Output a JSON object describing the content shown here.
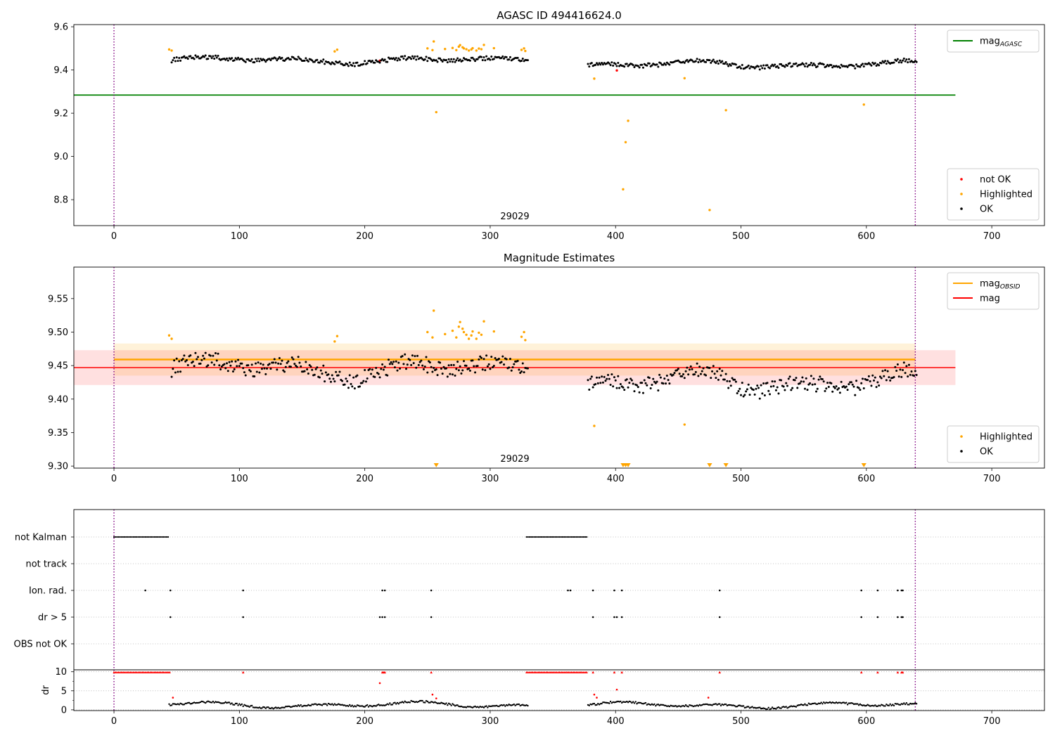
{
  "chart_data": [
    {
      "type": "scatter",
      "title": "AGASC ID 494416624.0",
      "annotation": "29029",
      "xlim": [
        -32,
        742
      ],
      "ylim": [
        8.68,
        9.61
      ],
      "xticks": [
        0,
        100,
        200,
        300,
        400,
        500,
        600,
        700
      ],
      "yticks": [
        8.8,
        9.0,
        9.2,
        9.4,
        9.6
      ],
      "grid": false,
      "vlines": [
        0,
        639
      ],
      "hlines": [
        {
          "name": "mag_AGASC",
          "y": 9.284,
          "x": [
            -32,
            671
          ],
          "color": "#008000"
        }
      ],
      "legend_top": {
        "position": "top-right",
        "entries": [
          {
            "label": "mag",
            "sub": "AGASC",
            "kind": "line",
            "color": "#008000"
          }
        ]
      },
      "legend_bottom": {
        "position": "bottom-right",
        "entries": [
          {
            "label": "not OK",
            "kind": "dot",
            "color": "#ff0000"
          },
          {
            "label": "Highlighted",
            "kind": "dot",
            "color": "#ffa500"
          },
          {
            "label": "OK",
            "kind": "dot",
            "color": "#000000"
          }
        ]
      },
      "series": [
        {
          "name": "not OK",
          "color": "#ff0000",
          "points": [
            [
              212,
              9.443
            ],
            [
              401,
              9.398
            ]
          ]
        },
        {
          "name": "Highlighted",
          "color": "#ffa500",
          "points": [
            [
              44,
              9.495
            ],
            [
              46,
              9.49
            ],
            [
              176,
              9.486
            ],
            [
              178,
              9.494
            ],
            [
              250,
              9.5
            ],
            [
              254,
              9.492
            ],
            [
              255,
              9.532
            ],
            [
              257,
              9.205
            ],
            [
              264,
              9.497
            ],
            [
              270,
              9.502
            ],
            [
              273,
              9.492
            ],
            [
              275,
              9.508
            ],
            [
              276,
              9.515
            ],
            [
              278,
              9.505
            ],
            [
              279,
              9.5
            ],
            [
              281,
              9.496
            ],
            [
              283,
              9.49
            ],
            [
              285,
              9.495
            ],
            [
              286,
              9.501
            ],
            [
              289,
              9.49
            ],
            [
              291,
              9.499
            ],
            [
              293,
              9.496
            ],
            [
              295,
              9.516
            ],
            [
              303,
              9.501
            ],
            [
              325,
              9.493
            ],
            [
              327,
              9.5
            ],
            [
              328,
              9.488
            ],
            [
              383,
              9.36
            ],
            [
              406,
              8.848
            ],
            [
              408,
              9.066
            ],
            [
              410,
              9.165
            ],
            [
              455,
              9.362
            ],
            [
              475,
              8.752
            ],
            [
              488,
              9.214
            ],
            [
              598,
              9.24
            ]
          ]
        },
        {
          "name": "OK",
          "color": "#000000",
          "segments": [
            {
              "x_start": 46,
              "x_end": 330,
              "step": 1.0,
              "base": 9.445,
              "amp": 0.018,
              "noise": 0.01
            },
            {
              "x_start": 378,
              "x_end": 640,
              "step": 1.0,
              "base": 9.425,
              "amp": 0.02,
              "noise": 0.01
            }
          ]
        }
      ]
    },
    {
      "type": "scatter",
      "title": "Magnitude Estimates",
      "annotation": "29029",
      "xlim": [
        -32,
        742
      ],
      "ylim": [
        9.297,
        9.597
      ],
      "xticks": [
        0,
        100,
        200,
        300,
        400,
        500,
        600,
        700
      ],
      "yticks": [
        9.3,
        9.35,
        9.4,
        9.45,
        9.5,
        9.55
      ],
      "grid": false,
      "vlines": [
        0,
        639
      ],
      "bands": [
        {
          "name": "mag_OBSID band",
          "y": [
            9.435,
            9.483
          ],
          "x": [
            0,
            639
          ],
          "color": "#ffa500",
          "opacity": 0.15
        },
        {
          "name": "mag band",
          "y": [
            9.421,
            9.473
          ],
          "x": [
            -32,
            671
          ],
          "color": "#ff0000",
          "opacity": 0.12
        }
      ],
      "hlines": [
        {
          "name": "mag_OBSID",
          "y": 9.459,
          "x": [
            0,
            639
          ],
          "color": "#ffa500",
          "width": 2.5
        },
        {
          "name": "mag",
          "y": 9.447,
          "x": [
            -32,
            671
          ],
          "color": "#ff0000",
          "width": 1.6
        }
      ],
      "legend_top": {
        "position": "top-right",
        "entries": [
          {
            "label": "mag",
            "sub": "OBSID",
            "kind": "line",
            "color": "#ffa500"
          },
          {
            "label": "mag",
            "kind": "line",
            "color": "#ff0000"
          }
        ]
      },
      "legend_bottom": {
        "position": "bottom-right",
        "entries": [
          {
            "label": "Highlighted",
            "kind": "dot",
            "color": "#ffa500"
          },
          {
            "label": "OK",
            "kind": "dot",
            "color": "#000000"
          }
        ]
      },
      "series": [
        {
          "name": "Highlighted",
          "color": "#ffa500",
          "points": [
            [
              44,
              9.495
            ],
            [
              46,
              9.49
            ],
            [
              176,
              9.486
            ],
            [
              178,
              9.494
            ],
            [
              250,
              9.5
            ],
            [
              254,
              9.492
            ],
            [
              255,
              9.532
            ],
            [
              264,
              9.497
            ],
            [
              270,
              9.502
            ],
            [
              273,
              9.492
            ],
            [
              275,
              9.508
            ],
            [
              276,
              9.515
            ],
            [
              278,
              9.505
            ],
            [
              279,
              9.5
            ],
            [
              281,
              9.496
            ],
            [
              283,
              9.49
            ],
            [
              285,
              9.495
            ],
            [
              286,
              9.501
            ],
            [
              289,
              9.49
            ],
            [
              291,
              9.499
            ],
            [
              293,
              9.496
            ],
            [
              295,
              9.516
            ],
            [
              303,
              9.501
            ],
            [
              325,
              9.493
            ],
            [
              327,
              9.5
            ],
            [
              328,
              9.488
            ],
            [
              383,
              9.36
            ],
            [
              455,
              9.362
            ]
          ]
        },
        {
          "name": "Highlighted (clipped)",
          "color": "#ffa500",
          "marker": "triangle-down",
          "y_at": 9.301,
          "x": [
            257,
            406,
            408,
            410,
            475,
            488,
            598
          ]
        },
        {
          "name": "OK",
          "color": "#000000",
          "segments": [
            {
              "x_start": 46,
              "x_end": 330,
              "step": 1.0,
              "base": 9.445,
              "amp": 0.018,
              "noise": 0.012
            },
            {
              "x_start": 378,
              "x_end": 640,
              "step": 1.0,
              "base": 9.425,
              "amp": 0.02,
              "noise": 0.012
            }
          ]
        }
      ]
    },
    {
      "type": "scatter",
      "subtype": "flags",
      "xlim": [
        -32,
        742
      ],
      "xticks": [
        0,
        100,
        200,
        300,
        400,
        500,
        600,
        700
      ],
      "vlines": [
        0,
        639
      ],
      "grid": true,
      "rows": [
        "not Kalman",
        "not track",
        "Ion. rad.",
        "dr > 5",
        "OBS not OK"
      ],
      "flags": {
        "not Kalman": {
          "ranges": [
            [
              0,
              44
            ],
            [
              329,
              378
            ]
          ],
          "step": 1.2
        },
        "not track": {
          "ranges": [],
          "step": 1
        },
        "Ion. rad.": {
          "points": [
            25,
            45,
            103,
            214,
            216,
            253,
            362,
            364,
            382,
            399,
            405,
            483,
            596,
            609,
            625,
            628,
            629
          ]
        },
        "dr > 5": {
          "points": [
            45,
            103,
            212,
            214,
            216,
            253,
            382,
            399,
            401,
            405,
            483,
            596,
            609,
            625,
            628,
            629
          ]
        },
        "OBS not OK": {
          "ranges": [],
          "step": 1
        }
      }
    },
    {
      "type": "scatter",
      "ylabel": "dr",
      "xlim": [
        -32,
        742
      ],
      "ylim": [
        -0.2,
        10.5
      ],
      "xticks": [
        0,
        100,
        200,
        300,
        400,
        500,
        600,
        700
      ],
      "yticks": [
        0,
        5,
        10
      ],
      "grid": true,
      "vlines": [
        0,
        639
      ],
      "series": [
        {
          "name": "capped",
          "color": "#ff0000",
          "marker": "triangle-up",
          "y_at": 9.8,
          "ranges": [
            [
              0,
              45
            ],
            [
              329,
              377
            ]
          ],
          "x": [
            103,
            214,
            215,
            216,
            253,
            382,
            399,
            405,
            483,
            596,
            609,
            625,
            628,
            629
          ]
        },
        {
          "name": "not OK dr",
          "color": "#ff0000",
          "points": [
            [
              47,
              3.2
            ],
            [
              212,
              7.0
            ],
            [
              254,
              4.0
            ],
            [
              257,
              3.0
            ],
            [
              383,
              4.0
            ],
            [
              385,
              3.2
            ],
            [
              401,
              5.3
            ],
            [
              474,
              3.2
            ]
          ]
        },
        {
          "name": "OK dr",
          "color": "#000000",
          "segments": [
            {
              "x_start": 44,
              "x_end": 330,
              "step": 1.0,
              "base": 1.3,
              "amp": 0.9,
              "noise": 0.25
            },
            {
              "x_start": 378,
              "x_end": 640,
              "step": 1.0,
              "base": 1.2,
              "amp": 0.9,
              "noise": 0.25
            }
          ]
        }
      ]
    }
  ]
}
